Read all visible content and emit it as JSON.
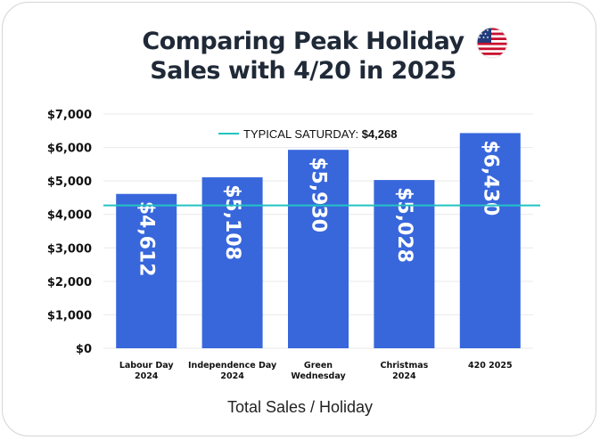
{
  "chart_data": {
    "type": "bar",
    "title_lines": [
      "Comparing Peak Holiday",
      "Sales with 4/20 in 2025"
    ],
    "categories": [
      [
        "Labour Day",
        "2024"
      ],
      [
        "Independence Day",
        "2024"
      ],
      [
        "Green",
        "Wednesday"
      ],
      [
        "Christmas",
        "2024"
      ],
      [
        "420 2025"
      ]
    ],
    "values": [
      4612,
      5108,
      5930,
      5028,
      6430
    ],
    "data_labels": [
      "$4,612",
      "$5,108",
      "$5,930",
      "$5,028",
      "$6,430"
    ],
    "xlabel": "Total Sales / Holiday",
    "ylabel": "",
    "ylim": [
      0,
      7000
    ],
    "yticks": [
      0,
      1000,
      2000,
      3000,
      4000,
      5000,
      6000,
      7000
    ],
    "ytick_labels": [
      "$0",
      "$1,000",
      "$2,000",
      "$3,000",
      "$4,000",
      "$5,000",
      "$6,000",
      "$7,000"
    ],
    "grid": true,
    "reference_line": {
      "label": "TYPICAL SATURDAY:",
      "value_label": "$4,268",
      "value": 4268,
      "color": "#22c3c3"
    },
    "bar_color": "#3867dc",
    "flag_icon": "us-flag-icon"
  }
}
